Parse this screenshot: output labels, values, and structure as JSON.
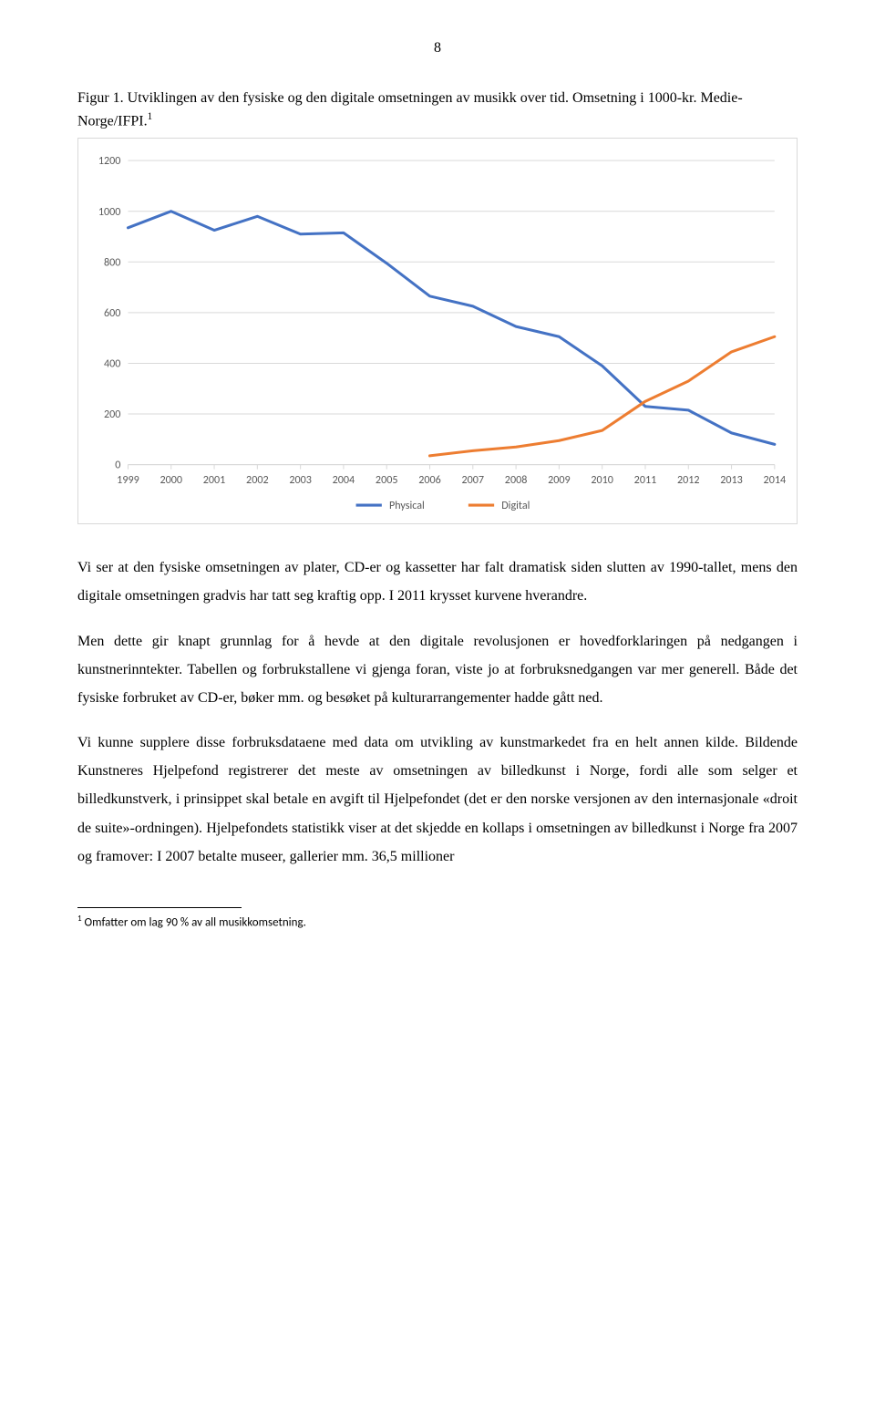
{
  "page_number": "8",
  "caption": "Figur 1. Utviklingen av den fysiske og den digitale omsetningen av musikk over tid. Omsetning i 1000-kr. Medie-Norge/IFPI.",
  "caption_sup": "1",
  "chart": {
    "type": "line",
    "background_color": "#ffffff",
    "border_color": "#d9d9d9",
    "grid_color": "#d9d9d9",
    "axis_color": "#d9d9d9",
    "text_color": "#595959",
    "tick_fontsize": 12,
    "legend_fontsize": 12,
    "line_width": 3,
    "ylim": [
      0,
      1200
    ],
    "ytick_step": 200,
    "x_labels": [
      "1999",
      "2000",
      "2001",
      "2002",
      "2003",
      "2004",
      "2005",
      "2006",
      "2007",
      "2008",
      "2009",
      "2010",
      "2011",
      "2012",
      "2013",
      "2014"
    ],
    "series": [
      {
        "name": "Physical",
        "color": "#4472c4",
        "values": [
          935,
          1000,
          925,
          980,
          910,
          915,
          795,
          665,
          625,
          545,
          505,
          390,
          230,
          215,
          125,
          80
        ]
      },
      {
        "name": "Digital",
        "color": "#ed7d31",
        "values": [
          null,
          null,
          null,
          null,
          null,
          null,
          null,
          35,
          55,
          70,
          95,
          135,
          250,
          330,
          445,
          505
        ]
      }
    ]
  },
  "paragraphs": {
    "p1": "Vi ser at den fysiske omsetningen av plater, CD-er og kassetter har falt dramatisk siden slutten av 1990-tallet, mens den digitale omsetningen gradvis har tatt seg kraftig opp. I 2011 krysset kurvene hverandre.",
    "p2": "Men dette gir knapt grunnlag for å hevde at den digitale revolusjonen er hovedforklaringen på nedgangen i kunstnerinntekter. Tabellen og forbrukstallene vi gjenga foran, viste jo at forbruksnedgangen var mer generell. Både det fysiske forbruket av CD-er, bøker mm. og besøket på kulturarrangementer hadde gått ned.",
    "p3": "Vi kunne supplere disse forbruksdataene med data om utvikling av kunstmarkedet fra en helt annen kilde. Bildende Kunstneres Hjelpefond registrerer det meste av omsetningen av billedkunst i Norge, fordi alle som selger et billedkunstverk, i prinsippet skal betale en avgift til Hjelpefondet (det er den norske versjonen av den internasjonale «droit de suite»-ordningen). Hjelpefondets statistikk viser at det skjedde en kollaps i omsetningen av billedkunst i Norge fra 2007 og framover: I 2007 betalte museer, gallerier mm. 36,5 millioner"
  },
  "footnote": {
    "marker": "1",
    "text": " Omfatter om lag 90 % av all musikkomsetning."
  }
}
